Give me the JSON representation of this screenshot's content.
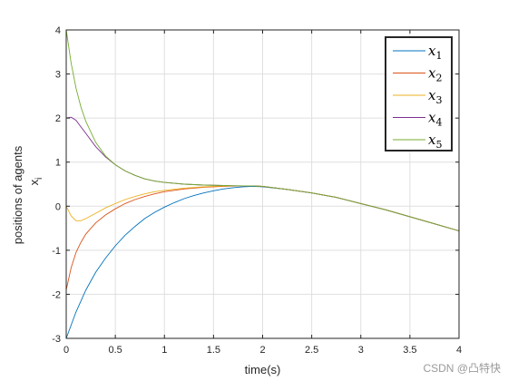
{
  "chart_data": {
    "type": "line",
    "xlabel": "time(s)",
    "ylabel_main": "positions of agents",
    "ylabel_symbol": "x",
    "ylabel_sub": "i",
    "xlim": [
      0,
      4
    ],
    "ylim": [
      -3,
      4
    ],
    "x_ticks": [
      "0",
      "0.5",
      "1",
      "1.5",
      "2",
      "2.5",
      "3",
      "3.5",
      "4"
    ],
    "y_ticks": [
      "-3",
      "-2",
      "-1",
      "0",
      "1",
      "2",
      "3",
      "4"
    ],
    "grid": true,
    "legend_position": "top-right",
    "series": [
      {
        "name": "x",
        "sub": "1",
        "color": "#0072BD",
        "x": [
          0,
          0.1,
          0.2,
          0.3,
          0.4,
          0.5,
          0.6,
          0.7,
          0.8,
          0.9,
          1.0,
          1.1,
          1.2,
          1.3,
          1.4,
          1.5,
          1.6,
          1.7,
          1.8,
          1.9,
          2.0,
          2.25,
          2.5,
          2.75,
          3.0,
          3.25,
          3.5,
          3.75,
          4.0
        ],
        "y": [
          -3.0,
          -2.4,
          -1.9,
          -1.5,
          -1.18,
          -0.9,
          -0.66,
          -0.46,
          -0.28,
          -0.14,
          -0.02,
          0.08,
          0.17,
          0.24,
          0.3,
          0.35,
          0.39,
          0.42,
          0.44,
          0.45,
          0.44,
          0.38,
          0.3,
          0.2,
          0.06,
          -0.08,
          -0.24,
          -0.4,
          -0.56
        ]
      },
      {
        "name": "x",
        "sub": "2",
        "color": "#D95319",
        "x": [
          0,
          0.05,
          0.1,
          0.15,
          0.2,
          0.3,
          0.4,
          0.5,
          0.6,
          0.7,
          0.8,
          0.9,
          1.0,
          1.2,
          1.4,
          1.6,
          1.8,
          1.9,
          2.0,
          2.25,
          2.5,
          2.75,
          3.0,
          3.25,
          3.5,
          3.75,
          4.0
        ],
        "y": [
          -1.9,
          -1.4,
          -1.05,
          -0.82,
          -0.63,
          -0.38,
          -0.2,
          -0.06,
          0.06,
          0.15,
          0.22,
          0.28,
          0.33,
          0.39,
          0.43,
          0.45,
          0.46,
          0.46,
          0.45,
          0.38,
          0.3,
          0.2,
          0.06,
          -0.08,
          -0.24,
          -0.4,
          -0.56
        ]
      },
      {
        "name": "x",
        "sub": "3",
        "color": "#EDB120",
        "x": [
          0,
          0.05,
          0.1,
          0.15,
          0.2,
          0.3,
          0.4,
          0.5,
          0.6,
          0.7,
          0.8,
          0.9,
          1.0,
          1.2,
          1.4,
          1.6,
          1.8,
          1.9,
          2.0,
          2.25,
          2.5,
          2.75,
          3.0,
          3.25,
          3.5,
          3.75,
          4.0
        ],
        "y": [
          0.0,
          -0.22,
          -0.33,
          -0.33,
          -0.28,
          -0.16,
          -0.04,
          0.06,
          0.15,
          0.22,
          0.28,
          0.33,
          0.36,
          0.41,
          0.44,
          0.46,
          0.46,
          0.46,
          0.45,
          0.38,
          0.3,
          0.2,
          0.06,
          -0.08,
          -0.24,
          -0.4,
          -0.56
        ]
      },
      {
        "name": "x",
        "sub": "4",
        "color": "#7E2F8E",
        "x": [
          0,
          0.05,
          0.1,
          0.15,
          0.2,
          0.3,
          0.4,
          0.5,
          0.6,
          0.7,
          0.8,
          0.9,
          1.0,
          1.2,
          1.4,
          1.6,
          1.8,
          1.9,
          2.0,
          2.25,
          2.5,
          2.75,
          3.0,
          3.25,
          3.5,
          3.75,
          4.0
        ],
        "y": [
          2.0,
          2.02,
          1.95,
          1.8,
          1.65,
          1.35,
          1.12,
          0.94,
          0.8,
          0.7,
          0.62,
          0.57,
          0.54,
          0.5,
          0.48,
          0.47,
          0.46,
          0.46,
          0.45,
          0.38,
          0.3,
          0.2,
          0.06,
          -0.08,
          -0.24,
          -0.4,
          -0.56
        ]
      },
      {
        "name": "x",
        "sub": "5",
        "color": "#77AC30",
        "x": [
          0,
          0.05,
          0.1,
          0.15,
          0.2,
          0.3,
          0.4,
          0.5,
          0.6,
          0.7,
          0.8,
          0.9,
          1.0,
          1.2,
          1.4,
          1.6,
          1.8,
          1.9,
          2.0,
          2.25,
          2.5,
          2.75,
          3.0,
          3.25,
          3.5,
          3.75,
          4.0
        ],
        "y": [
          4.0,
          3.25,
          2.68,
          2.25,
          1.92,
          1.45,
          1.14,
          0.94,
          0.8,
          0.7,
          0.62,
          0.57,
          0.54,
          0.5,
          0.48,
          0.47,
          0.46,
          0.46,
          0.45,
          0.38,
          0.3,
          0.2,
          0.06,
          -0.08,
          -0.24,
          -0.4,
          -0.56
        ]
      }
    ]
  },
  "watermark": "CSDN @凸特快"
}
